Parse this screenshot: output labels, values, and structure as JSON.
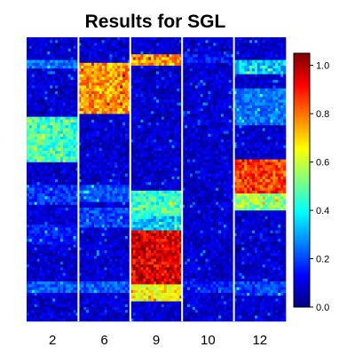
{
  "chart_data": {
    "type": "heatmap",
    "title": "Results for SGL",
    "xlabel": "",
    "ylabel": "",
    "panels": [
      "2",
      "6",
      "9",
      "10",
      "12"
    ],
    "colorbar": {
      "min": 0.0,
      "max": 1.05,
      "ticks": [
        "0.0",
        "0.2",
        "0.4",
        "0.6",
        "0.8",
        "1.0"
      ],
      "tick_values": [
        0.0,
        0.2,
        0.4,
        0.6,
        0.8,
        1.0
      ],
      "colormap": "jet",
      "placement": "right"
    },
    "rows": 100,
    "cols_per_panel": 20,
    "background_level": 0.08,
    "bands": [
      {
        "panel": "2",
        "from_row": 8,
        "to_row": 10,
        "level": 0.25
      },
      {
        "panel": "2",
        "from_row": 28,
        "to_row": 43,
        "level": 0.45
      },
      {
        "panel": "2",
        "from_row": 52,
        "to_row": 58,
        "level": 0.18
      },
      {
        "panel": "2",
        "from_row": 66,
        "to_row": 72,
        "level": 0.15
      },
      {
        "panel": "2",
        "from_row": 86,
        "to_row": 89,
        "level": 0.22
      },
      {
        "panel": "6",
        "from_row": 9,
        "to_row": 26,
        "level": 0.76
      },
      {
        "panel": "6",
        "from_row": 52,
        "to_row": 57,
        "level": 0.22
      },
      {
        "panel": "6",
        "from_row": 60,
        "to_row": 66,
        "level": 0.2
      },
      {
        "panel": "6",
        "from_row": 86,
        "to_row": 89,
        "level": 0.22
      },
      {
        "panel": "9",
        "from_row": 6,
        "to_row": 9,
        "level": 0.75
      },
      {
        "panel": "9",
        "from_row": 54,
        "to_row": 62,
        "level": 0.45
      },
      {
        "panel": "9",
        "from_row": 62,
        "to_row": 67,
        "level": 0.35
      },
      {
        "panel": "9",
        "from_row": 68,
        "to_row": 86,
        "level": 0.95
      },
      {
        "panel": "9",
        "from_row": 86,
        "to_row": 92,
        "level": 0.65
      },
      {
        "panel": "10",
        "from_row": 6,
        "to_row": 8,
        "level": 0.15
      },
      {
        "panel": "10",
        "from_row": 86,
        "to_row": 89,
        "level": 0.15
      },
      {
        "panel": "12",
        "from_row": 8,
        "to_row": 12,
        "level": 0.35
      },
      {
        "panel": "12",
        "from_row": 18,
        "to_row": 30,
        "level": 0.25
      },
      {
        "panel": "12",
        "from_row": 43,
        "to_row": 54,
        "level": 0.85
      },
      {
        "panel": "12",
        "from_row": 54,
        "to_row": 60,
        "level": 0.55
      },
      {
        "panel": "12",
        "from_row": 86,
        "to_row": 90,
        "level": 0.2
      }
    ]
  }
}
